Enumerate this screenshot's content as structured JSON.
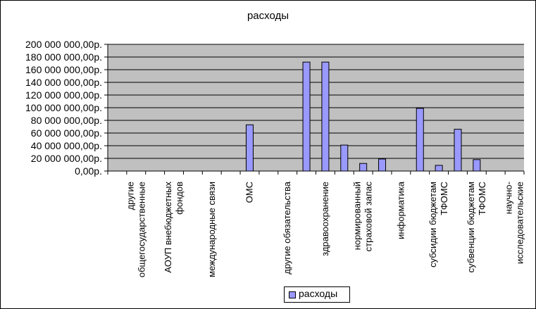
{
  "chart_data": {
    "type": "bar",
    "title": "расходы",
    "xlabel": "",
    "ylabel": "",
    "ylim": [
      0,
      200000000
    ],
    "yticks": [
      "0,00р.",
      "20 000 000,00р.",
      "40 000 000,00р.",
      "60 000 000,00р.",
      "80 000 000,00р.",
      "100 000 000,00р.",
      "120 000 000,00р.",
      "140 000 000,00р.",
      "160 000 000,00р.",
      "180 000 000,00р.",
      "200 000 000,00р."
    ],
    "grid": true,
    "legend_position": "bottom",
    "bar_color": "#9999ff",
    "plot_background": "#c0c0c0",
    "categories": [
      "",
      "другие общегосударственные",
      "",
      "АОУП внебюджетных фондов",
      "",
      "международные связи",
      "",
      "ОМС",
      "",
      "другие обязательства",
      "",
      "здравоохранение",
      "",
      "нормированный страховой запас",
      "",
      "информатика",
      "",
      "субсидии бюджетам ТФОМС",
      "",
      "субвенции бюджетам ТФОМС",
      "",
      "научно-исследовательские"
    ],
    "category_labels_display": [
      "",
      "другие|общегосударственные",
      "",
      "АОУП внебюджетных|фондов",
      "",
      "международные связи",
      "",
      "ОМС",
      "",
      "другие обязательства",
      "",
      "здравоохранение",
      "",
      "нормированный|страховой запас",
      "",
      "информатика",
      "",
      "субсидии бюджетам|ТФОМС",
      "",
      "субвенции бюджетам|ТФОМС",
      "",
      "научно-|исследовательские"
    ],
    "series": [
      {
        "name": "расходы",
        "values": [
          0,
          0,
          0,
          0,
          0,
          0,
          0,
          73000000,
          0,
          0,
          172000000,
          172000000,
          41000000,
          12000000,
          19000000,
          0,
          99000000,
          9000000,
          66000000,
          18000000,
          0,
          0
        ]
      }
    ]
  }
}
